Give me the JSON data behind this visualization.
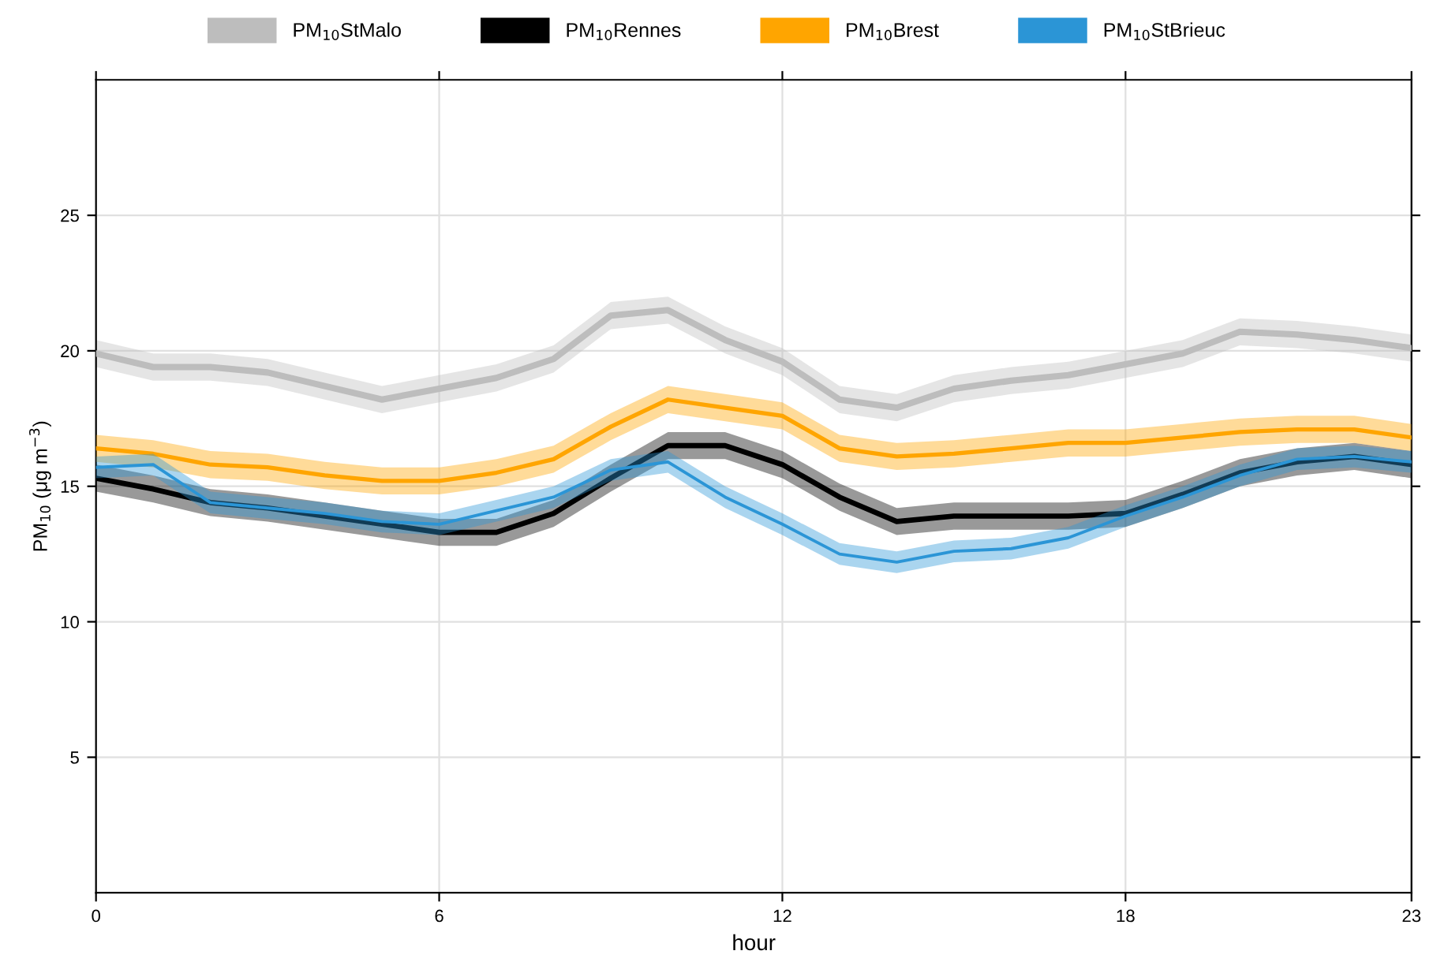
{
  "chart_data": {
    "type": "line",
    "xlabel": "hour",
    "ylabel": "PM$_{10}$ (μg m$^{−3}$)",
    "x": [
      0,
      1,
      2,
      3,
      4,
      5,
      6,
      7,
      8,
      9,
      10,
      11,
      12,
      13,
      14,
      15,
      16,
      17,
      18,
      19,
      20,
      21,
      22,
      23
    ],
    "xlim": [
      0,
      23
    ],
    "xticks": [
      0,
      6,
      12,
      18,
      23
    ],
    "ylim": [
      0,
      30
    ],
    "yticks": [
      5,
      10,
      15,
      20,
      25
    ],
    "grid": true,
    "legend": "top",
    "line_style": "solid",
    "marker": "none",
    "series": [
      {
        "name": "PM$_{10}$StMalo",
        "color": "#bdbdbd",
        "values": [
          19.9,
          19.4,
          19.4,
          19.2,
          18.7,
          18.2,
          18.6,
          19.0,
          19.7,
          21.3,
          21.5,
          20.4,
          19.6,
          18.2,
          17.9,
          18.6,
          18.9,
          19.1,
          19.5,
          19.9,
          20.7,
          20.6,
          20.4,
          20.1
        ],
        "lower": [
          19.4,
          18.9,
          18.9,
          18.7,
          18.2,
          17.7,
          18.1,
          18.5,
          19.2,
          20.8,
          21.0,
          19.9,
          19.1,
          17.7,
          17.4,
          18.1,
          18.4,
          18.6,
          19.0,
          19.4,
          20.2,
          20.1,
          19.9,
          19.6
        ],
        "upper": [
          20.4,
          19.9,
          19.9,
          19.7,
          19.2,
          18.7,
          19.1,
          19.5,
          20.2,
          21.8,
          22.0,
          20.9,
          20.1,
          18.7,
          18.4,
          19.1,
          19.4,
          19.6,
          20.0,
          20.4,
          21.2,
          21.1,
          20.9,
          20.6
        ]
      },
      {
        "name": "PM$_{10}$Rennes",
        "color": "#000000",
        "values": [
          15.3,
          14.9,
          14.4,
          14.2,
          13.9,
          13.6,
          13.3,
          13.3,
          14.0,
          15.3,
          16.5,
          16.5,
          15.8,
          14.6,
          13.7,
          13.9,
          13.9,
          13.9,
          14.0,
          14.7,
          15.5,
          15.9,
          16.1,
          15.8
        ],
        "lower": [
          14.8,
          14.4,
          13.9,
          13.7,
          13.4,
          13.1,
          12.8,
          12.8,
          13.5,
          14.8,
          16.0,
          16.0,
          15.3,
          14.1,
          13.2,
          13.4,
          13.4,
          13.4,
          13.5,
          14.2,
          15.0,
          15.4,
          15.6,
          15.3
        ],
        "upper": [
          15.8,
          15.4,
          14.9,
          14.7,
          14.4,
          14.1,
          13.8,
          13.8,
          14.5,
          15.8,
          17.0,
          17.0,
          16.3,
          15.1,
          14.2,
          14.4,
          14.4,
          14.4,
          14.5,
          15.2,
          16.0,
          16.4,
          16.6,
          16.3
        ]
      },
      {
        "name": "PM$_{10}$Brest",
        "color": "#ffa500",
        "values": [
          16.4,
          16.2,
          15.8,
          15.7,
          15.4,
          15.2,
          15.2,
          15.5,
          16.0,
          17.2,
          18.2,
          17.9,
          17.6,
          16.4,
          16.1,
          16.2,
          16.4,
          16.6,
          16.6,
          16.8,
          17.0,
          17.1,
          17.1,
          16.8
        ],
        "lower": [
          15.9,
          15.7,
          15.3,
          15.2,
          14.9,
          14.7,
          14.7,
          15.0,
          15.5,
          16.7,
          17.7,
          17.4,
          17.1,
          15.9,
          15.6,
          15.7,
          15.9,
          16.1,
          16.1,
          16.3,
          16.5,
          16.6,
          16.6,
          16.3
        ],
        "upper": [
          16.9,
          16.7,
          16.3,
          16.2,
          15.9,
          15.7,
          15.7,
          16.0,
          16.5,
          17.7,
          18.7,
          18.4,
          18.1,
          16.9,
          16.6,
          16.7,
          16.9,
          17.1,
          17.1,
          17.3,
          17.5,
          17.6,
          17.6,
          17.3
        ]
      },
      {
        "name": "PM$_{10}$StBrieuc",
        "color": "#2b95d6",
        "values": [
          15.7,
          15.8,
          14.4,
          14.2,
          14.0,
          13.7,
          13.6,
          14.1,
          14.6,
          15.6,
          15.9,
          14.6,
          13.6,
          12.5,
          12.2,
          12.6,
          12.7,
          13.1,
          13.9,
          14.6,
          15.4,
          16.0,
          16.1,
          15.9
        ],
        "lower": [
          15.3,
          15.4,
          14.0,
          13.8,
          13.6,
          13.3,
          13.2,
          13.7,
          14.2,
          15.2,
          15.5,
          14.2,
          13.2,
          12.1,
          11.8,
          12.2,
          12.3,
          12.7,
          13.5,
          14.2,
          15.0,
          15.6,
          15.7,
          15.5
        ],
        "upper": [
          16.1,
          16.2,
          14.8,
          14.6,
          14.4,
          14.1,
          14.0,
          14.5,
          15.0,
          16.0,
          16.3,
          15.0,
          14.0,
          12.9,
          12.6,
          13.0,
          13.1,
          13.5,
          14.3,
          15.0,
          15.8,
          16.4,
          16.5,
          16.3
        ]
      }
    ]
  }
}
